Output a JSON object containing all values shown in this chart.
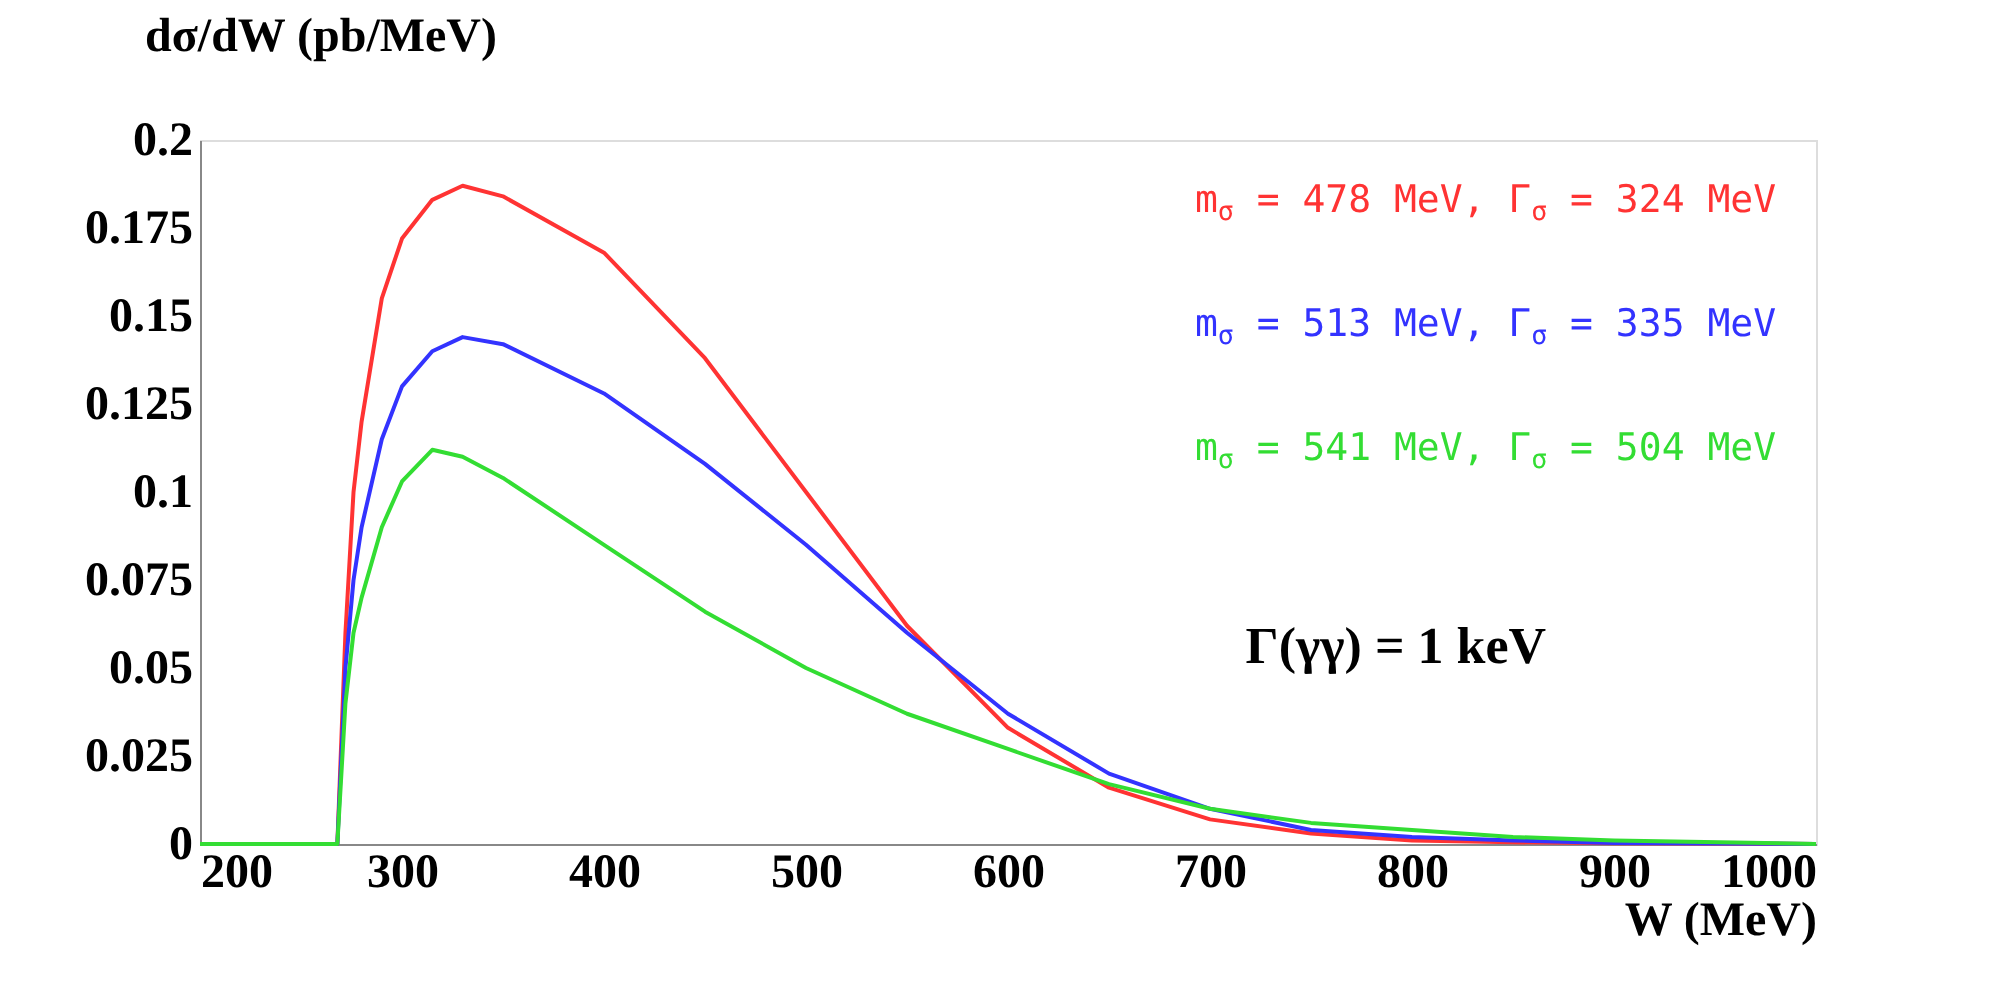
{
  "chart_data": {
    "type": "line",
    "xlabel": "W (MeV)",
    "ylabel": "dσ/dW (pb/MeV)",
    "xlim": [
      200,
      1000
    ],
    "xticks": [
      200,
      300,
      400,
      500,
      600,
      700,
      800,
      900,
      1000
    ],
    "ylim": [
      0,
      0.2
    ],
    "yticks": [
      0,
      0.025,
      0.05,
      0.075,
      0.1,
      0.125,
      0.15,
      0.175,
      0.2
    ],
    "grid": false,
    "marker": "none",
    "line_style": "solid",
    "annotations": [
      "Γ(γγ) = 1 keV"
    ],
    "series": [
      {
        "name": "m$_{σ}$ = 478 MeV, Γ$_{σ}$ = 324 MeV",
        "color": "#ff3333",
        "x": [
          200,
          268,
          272,
          276,
          280,
          290,
          300,
          315,
          330,
          350,
          400,
          450,
          500,
          550,
          600,
          650,
          700,
          750,
          800,
          850,
          900,
          1000
        ],
        "values": [
          0,
          0,
          0.06,
          0.1,
          0.12,
          0.155,
          0.172,
          0.183,
          0.187,
          0.184,
          0.168,
          0.138,
          0.1,
          0.062,
          0.033,
          0.016,
          0.007,
          0.003,
          0.001,
          0.0005,
          0.0002,
          0
        ]
      },
      {
        "name": "m$_{σ}$ = 513 MeV, Γ$_{σ}$ = 335 MeV",
        "color": "#3333ff",
        "x": [
          200,
          268,
          272,
          276,
          280,
          290,
          300,
          315,
          330,
          350,
          400,
          450,
          500,
          550,
          600,
          650,
          700,
          750,
          800,
          850,
          900,
          1000
        ],
        "values": [
          0,
          0,
          0.05,
          0.075,
          0.09,
          0.115,
          0.13,
          0.14,
          0.144,
          0.142,
          0.128,
          0.108,
          0.085,
          0.06,
          0.037,
          0.02,
          0.01,
          0.004,
          0.002,
          0.001,
          0.0003,
          0
        ]
      },
      {
        "name": "m$_{σ}$ = 541 MeV, Γ$_{σ}$ = 504 MeV",
        "color": "#33dd33",
        "x": [
          200,
          268,
          272,
          276,
          280,
          290,
          300,
          315,
          330,
          350,
          400,
          450,
          500,
          550,
          600,
          650,
          700,
          750,
          800,
          850,
          900,
          1000
        ],
        "values": [
          0,
          0,
          0.04,
          0.06,
          0.07,
          0.09,
          0.103,
          0.112,
          0.11,
          0.104,
          0.085,
          0.066,
          0.05,
          0.037,
          0.027,
          0.017,
          0.01,
          0.006,
          0.004,
          0.002,
          0.001,
          0
        ]
      }
    ]
  }
}
